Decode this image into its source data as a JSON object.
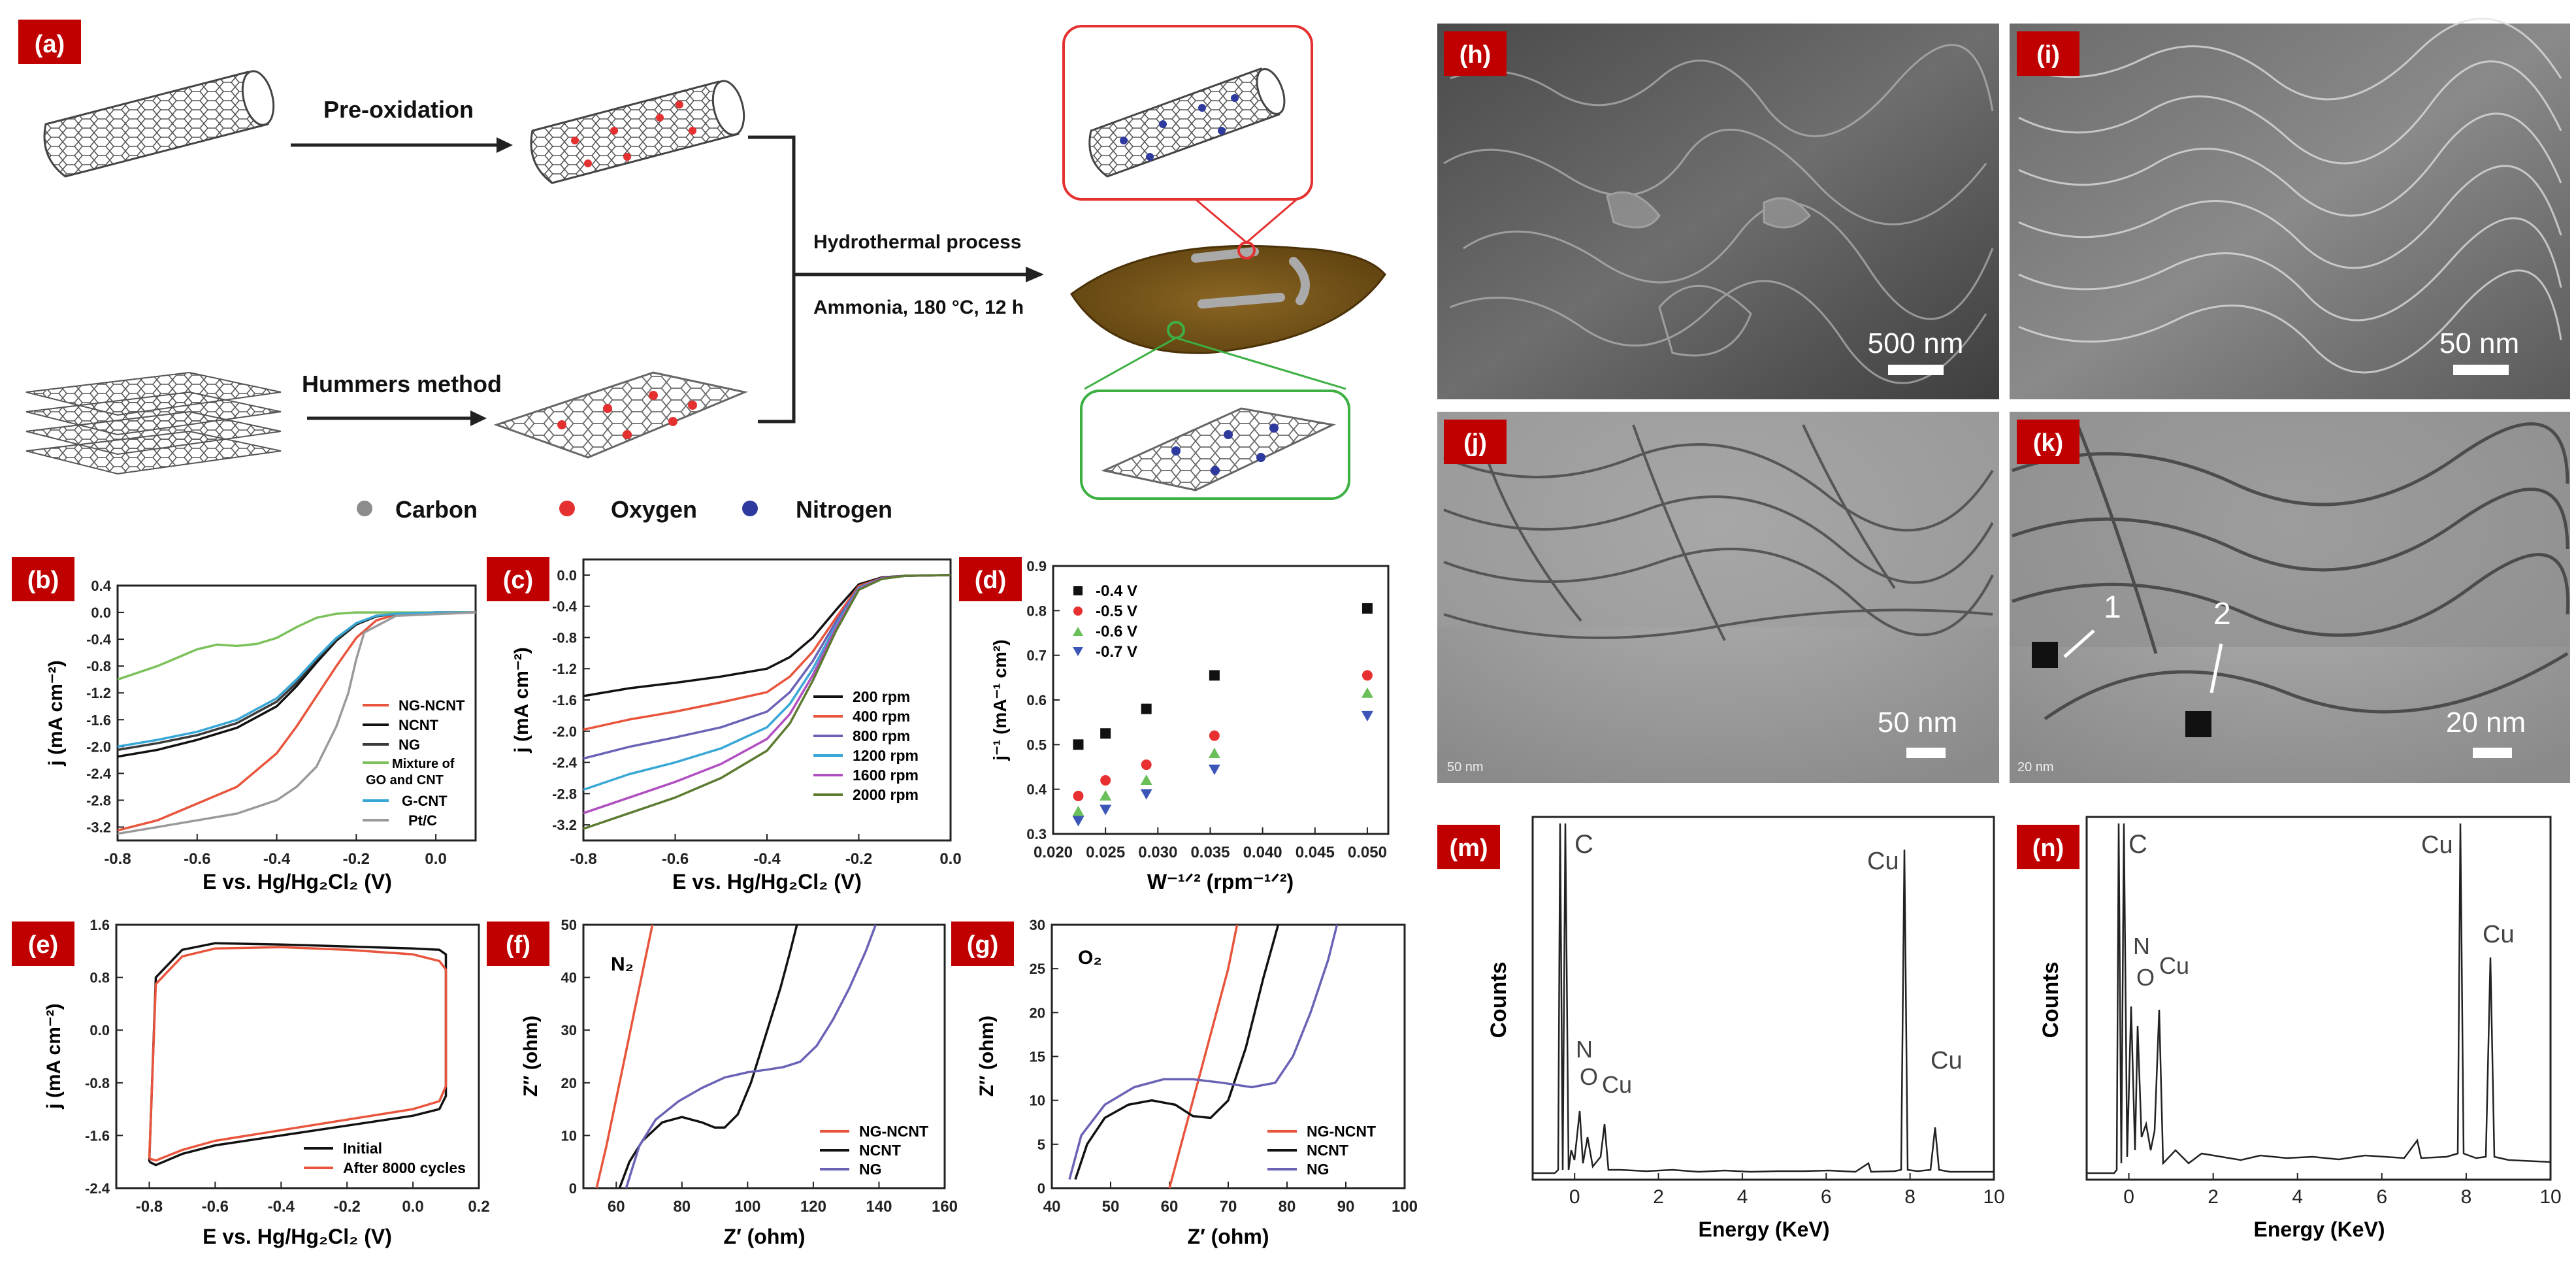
{
  "panels": {
    "a": {
      "tag": "(a)",
      "step_pre_oxidation": "Pre-oxidation",
      "step_hummers": "Hummers method",
      "step_hydrothermal": "Hydrothermal process",
      "step_conditions": "Ammonia, 180 °C, 12 h",
      "legend": [
        {
          "label": "Carbon",
          "color": "#8c8c8c"
        },
        {
          "label": "Oxygen",
          "color": "#e53030"
        },
        {
          "label": "Nitrogen",
          "color": "#2e3a9e"
        }
      ]
    },
    "b": {
      "tag": "(b)",
      "xlabel": "E vs. Hg/Hg₂Cl₂ (V)",
      "ylabel": "j (mA cm⁻²)",
      "xticks": [
        "-0.8",
        "-0.6",
        "-0.4",
        "-0.2",
        "0.0"
      ],
      "yticks": [
        "0.4",
        "0.0",
        "-0.4",
        "-0.8",
        "-1.2",
        "-1.6",
        "-2.0",
        "-2.4",
        "-2.8",
        "-3.2"
      ],
      "legend": [
        "NG-NCNT",
        "NCNT",
        "NG",
        "Mixture of",
        "GO and CNT",
        "G-CNT",
        "Pt/C"
      ]
    },
    "c": {
      "tag": "(c)",
      "xlabel": "E vs. Hg/Hg₂Cl₂ (V)",
      "ylabel": "j (mA cm⁻²)",
      "xticks": [
        "-0.8",
        "-0.6",
        "-0.4",
        "-0.2",
        "0.0"
      ],
      "yticks": [
        "0.0",
        "-0.4",
        "-0.8",
        "-1.2",
        "-1.6",
        "-2.0",
        "-2.4",
        "-2.8",
        "-3.2"
      ],
      "legend": [
        "200 rpm",
        "400 rpm",
        "800 rpm",
        "1200 rpm",
        "1600 rpm",
        "2000 rpm"
      ]
    },
    "d": {
      "tag": "(d)",
      "xlabel": "W⁻¹ᐟ² (rpm⁻¹ᐟ²)",
      "ylabel": "j⁻¹ (mA⁻¹ cm²)",
      "xticks": [
        "0.020",
        "0.025",
        "0.030",
        "0.035",
        "0.040",
        "0.045",
        "0.050"
      ],
      "yticks": [
        "0.9",
        "0.8",
        "0.7",
        "0.6",
        "0.5",
        "0.4",
        "0.3"
      ],
      "legend": [
        "-0.4 V",
        "-0.5 V",
        "-0.6 V",
        "-0.7 V"
      ]
    },
    "e": {
      "tag": "(e)",
      "xlabel": "E vs. Hg/Hg₂Cl₂ (V)",
      "ylabel": "j (mA cm⁻²)",
      "xticks": [
        "-0.8",
        "-0.6",
        "-0.4",
        "-0.2",
        "0.0",
        "0.2"
      ],
      "yticks": [
        "1.6",
        "0.8",
        "0.0",
        "-0.8",
        "-1.6",
        "-2.4"
      ],
      "legend": [
        "Initial",
        "After 8000 cycles"
      ]
    },
    "f": {
      "tag": "(f)",
      "gas": "N₂",
      "xlabel": "Z′ (ohm)",
      "ylabel": "Z″ (ohm)",
      "xticks": [
        "60",
        "80",
        "100",
        "120",
        "140",
        "160"
      ],
      "yticks": [
        "50",
        "40",
        "30",
        "20",
        "10",
        "0"
      ],
      "legend": [
        "NG-NCNT",
        "NCNT",
        "NG"
      ]
    },
    "g": {
      "tag": "(g)",
      "gas": "O₂",
      "xlabel": "Z′ (ohm)",
      "ylabel": "Z″ (ohm)",
      "xticks": [
        "40",
        "50",
        "60",
        "70",
        "80",
        "90",
        "100"
      ],
      "yticks": [
        "30",
        "25",
        "20",
        "15",
        "10",
        "5",
        "0"
      ],
      "legend": [
        "NG-NCNT",
        "NCNT",
        "NG"
      ]
    },
    "h": {
      "tag": "(h)",
      "scale": "500 nm"
    },
    "i": {
      "tag": "(i)",
      "scale": "50 nm"
    },
    "j": {
      "tag": "(j)",
      "scale": "50 nm",
      "micro": "50 nm"
    },
    "k": {
      "tag": "(k)",
      "scale": "20 nm",
      "micro": "20 nm",
      "marker1": "1",
      "marker2": "2"
    },
    "m": {
      "tag": "(m)",
      "xlabel": "Energy (KeV)",
      "ylabel": "Counts",
      "xticks": [
        "0",
        "2",
        "4",
        "6",
        "8",
        "10"
      ],
      "peaks": [
        "C",
        "N",
        "O",
        "Cu",
        "Cu",
        "Cu"
      ]
    },
    "n": {
      "tag": "(n)",
      "xlabel": "Energy (KeV)",
      "ylabel": "Counts",
      "xticks": [
        "0",
        "2",
        "4",
        "6",
        "8",
        "10"
      ],
      "peaks": [
        "C",
        "N",
        "O",
        "Cu",
        "Cu",
        "Cu"
      ]
    }
  },
  "colors": {
    "tag_bg": "#c00000",
    "red": "#e8543c",
    "black": "#111111",
    "blue": "#6a62b5",
    "green": "#7cc15b",
    "cyan": "#39a7d6",
    "gray": "#888888"
  },
  "chart_data": [
    {
      "type": "line",
      "panel": "b",
      "xlim": [
        -0.8,
        0.1
      ],
      "ylim": [
        -3.4,
        0.4
      ],
      "series": [
        {
          "name": "NG-NCNT",
          "color": "#e8543c",
          "x": [
            -0.8,
            -0.7,
            -0.6,
            -0.5,
            -0.4,
            -0.35,
            -0.3,
            -0.25,
            -0.2,
            -0.15,
            -0.1,
            0.0,
            0.1
          ],
          "y": [
            -3.25,
            -3.1,
            -2.85,
            -2.6,
            -2.1,
            -1.7,
            -1.25,
            -0.8,
            -0.38,
            -0.12,
            -0.03,
            0.0,
            0.0
          ]
        },
        {
          "name": "NCNT",
          "color": "#111111",
          "x": [
            -0.8,
            -0.7,
            -0.6,
            -0.5,
            -0.4,
            -0.35,
            -0.3,
            -0.25,
            -0.2,
            -0.15,
            -0.1,
            0.0,
            0.1
          ],
          "y": [
            -2.15,
            -2.05,
            -1.9,
            -1.72,
            -1.4,
            -1.1,
            -0.75,
            -0.42,
            -0.18,
            -0.06,
            -0.02,
            0.0,
            0.0
          ]
        },
        {
          "name": "NG",
          "color": "#3a3a3a",
          "x": [
            -0.8,
            -0.7,
            -0.6,
            -0.5,
            -0.4,
            -0.35,
            -0.3,
            -0.25,
            -0.2,
            -0.15,
            -0.1,
            0.0,
            0.1
          ],
          "y": [
            -2.05,
            -1.95,
            -1.83,
            -1.65,
            -1.33,
            -1.05,
            -0.7,
            -0.4,
            -0.17,
            -0.05,
            -0.02,
            0.0,
            0.0
          ]
        },
        {
          "name": "Mixture of GO and CNT",
          "color": "#7cc15b",
          "x": [
            -0.8,
            -0.7,
            -0.6,
            -0.55,
            -0.5,
            -0.45,
            -0.4,
            -0.35,
            -0.3,
            -0.25,
            -0.2,
            -0.1,
            0.1
          ],
          "y": [
            -1.0,
            -0.8,
            -0.55,
            -0.48,
            -0.5,
            -0.47,
            -0.38,
            -0.22,
            -0.08,
            -0.02,
            0.0,
            0.0,
            0.0
          ]
        },
        {
          "name": "G-CNT",
          "color": "#39a7d6",
          "x": [
            -0.8,
            -0.7,
            -0.6,
            -0.5,
            -0.4,
            -0.35,
            -0.3,
            -0.25,
            -0.2,
            -0.15,
            -0.1,
            0.0,
            0.1
          ],
          "y": [
            -2.0,
            -1.9,
            -1.78,
            -1.6,
            -1.28,
            -1.0,
            -0.68,
            -0.38,
            -0.16,
            -0.05,
            -0.02,
            0.0,
            0.0
          ]
        },
        {
          "name": "Pt/C",
          "color": "#9a9a9a",
          "x": [
            -0.8,
            -0.7,
            -0.6,
            -0.5,
            -0.4,
            -0.35,
            -0.3,
            -0.25,
            -0.22,
            -0.2,
            -0.18,
            -0.1,
            0.1
          ],
          "y": [
            -3.3,
            -3.2,
            -3.1,
            -3.0,
            -2.8,
            -2.6,
            -2.3,
            -1.7,
            -1.2,
            -0.7,
            -0.3,
            -0.05,
            0.0
          ]
        }
      ]
    },
    {
      "type": "line",
      "panel": "c",
      "xlim": [
        -0.8,
        0.0
      ],
      "ylim": [
        -3.4,
        0.2
      ],
      "series": [
        {
          "name": "200 rpm",
          "color": "#111111",
          "x": [
            -0.8,
            -0.7,
            -0.6,
            -0.5,
            -0.4,
            -0.35,
            -0.3,
            -0.25,
            -0.2,
            -0.15,
            -0.1,
            0.0
          ],
          "y": [
            -1.55,
            -1.45,
            -1.38,
            -1.3,
            -1.2,
            -1.05,
            -0.8,
            -0.45,
            -0.12,
            -0.03,
            -0.01,
            0.0
          ]
        },
        {
          "name": "400 rpm",
          "color": "#e8543c",
          "x": [
            -0.8,
            -0.7,
            -0.6,
            -0.5,
            -0.4,
            -0.35,
            -0.3,
            -0.25,
            -0.2,
            -0.15,
            -0.1,
            0.0
          ],
          "y": [
            -1.98,
            -1.85,
            -1.75,
            -1.63,
            -1.5,
            -1.3,
            -0.98,
            -0.55,
            -0.14,
            -0.04,
            -0.01,
            0.0
          ]
        },
        {
          "name": "800 rpm",
          "color": "#6a62b5",
          "x": [
            -0.8,
            -0.7,
            -0.6,
            -0.5,
            -0.4,
            -0.35,
            -0.3,
            -0.25,
            -0.2,
            -0.15,
            -0.1,
            0.0
          ],
          "y": [
            -2.35,
            -2.2,
            -2.08,
            -1.95,
            -1.75,
            -1.5,
            -1.1,
            -0.6,
            -0.16,
            -0.04,
            -0.01,
            0.0
          ]
        },
        {
          "name": "1200 rpm",
          "color": "#39a7d6",
          "x": [
            -0.8,
            -0.7,
            -0.6,
            -0.5,
            -0.4,
            -0.35,
            -0.3,
            -0.25,
            -0.2,
            -0.15,
            -0.1,
            0.0
          ],
          "y": [
            -2.75,
            -2.55,
            -2.4,
            -2.22,
            -1.95,
            -1.65,
            -1.2,
            -0.65,
            -0.17,
            -0.04,
            -0.01,
            0.0
          ]
        },
        {
          "name": "1600 rpm",
          "color": "#b04fc0",
          "x": [
            -0.8,
            -0.7,
            -0.6,
            -0.5,
            -0.4,
            -0.35,
            -0.3,
            -0.25,
            -0.2,
            -0.15,
            -0.1,
            0.0
          ],
          "y": [
            -3.05,
            -2.85,
            -2.65,
            -2.42,
            -2.1,
            -1.78,
            -1.28,
            -0.68,
            -0.18,
            -0.04,
            -0.01,
            0.0
          ]
        },
        {
          "name": "2000 rpm",
          "color": "#5c7a30",
          "x": [
            -0.8,
            -0.7,
            -0.6,
            -0.5,
            -0.4,
            -0.35,
            -0.3,
            -0.25,
            -0.2,
            -0.15,
            -0.1,
            0.0
          ],
          "y": [
            -3.25,
            -3.05,
            -2.85,
            -2.6,
            -2.25,
            -1.9,
            -1.35,
            -0.72,
            -0.19,
            -0.05,
            -0.01,
            0.0
          ]
        }
      ]
    },
    {
      "type": "scatter",
      "panel": "d",
      "xlim": [
        0.02,
        0.052
      ],
      "ylim": [
        0.3,
        0.9
      ],
      "series": [
        {
          "name": "-0.4 V",
          "color": "#111111",
          "marker": "square",
          "x": [
            0.0224,
            0.025,
            0.0289,
            0.0354,
            0.05
          ],
          "y": [
            0.5,
            0.525,
            0.58,
            0.655,
            0.805
          ]
        },
        {
          "name": "-0.5 V",
          "color": "#e83030",
          "marker": "circle",
          "x": [
            0.0224,
            0.025,
            0.0289,
            0.0354,
            0.05
          ],
          "y": [
            0.385,
            0.42,
            0.455,
            0.52,
            0.655
          ]
        },
        {
          "name": "-0.6 V",
          "color": "#6bbf59",
          "marker": "triangle",
          "x": [
            0.0224,
            0.025,
            0.0289,
            0.0354,
            0.05
          ],
          "y": [
            0.35,
            0.385,
            0.42,
            0.48,
            0.615
          ]
        },
        {
          "name": "-0.7 V",
          "color": "#3c56b8",
          "marker": "triangle-down",
          "x": [
            0.0224,
            0.025,
            0.0289,
            0.0354,
            0.05
          ],
          "y": [
            0.33,
            0.355,
            0.39,
            0.445,
            0.565
          ]
        }
      ]
    },
    {
      "type": "line",
      "panel": "e",
      "xlim": [
        -0.9,
        0.2
      ],
      "ylim": [
        -2.4,
        1.6
      ],
      "series": [
        {
          "name": "Initial",
          "color": "#111111",
          "x": [
            -0.8,
            -0.78,
            -0.7,
            -0.6,
            -0.4,
            -0.2,
            0.0,
            0.08,
            0.1,
            0.1,
            0.08,
            0.0,
            -0.2,
            -0.4,
            -0.6,
            -0.7,
            -0.78,
            -0.8
          ],
          "y": [
            -2.0,
            0.8,
            1.22,
            1.32,
            1.3,
            1.27,
            1.24,
            1.22,
            1.15,
            -1.0,
            -1.2,
            -1.3,
            -1.45,
            -1.6,
            -1.75,
            -1.88,
            -2.05,
            -2.0
          ]
        },
        {
          "name": "After 8000 cycles",
          "color": "#e8543c",
          "x": [
            -0.8,
            -0.78,
            -0.7,
            -0.6,
            -0.4,
            -0.2,
            0.0,
            0.08,
            0.1,
            0.1,
            0.08,
            0.0,
            -0.2,
            -0.4,
            -0.6,
            -0.7,
            -0.78,
            -0.8
          ],
          "y": [
            -1.95,
            0.7,
            1.12,
            1.24,
            1.26,
            1.22,
            1.15,
            1.05,
            0.92,
            -0.85,
            -1.08,
            -1.2,
            -1.36,
            -1.52,
            -1.68,
            -1.82,
            -1.98,
            -1.95
          ]
        }
      ]
    },
    {
      "type": "line",
      "panel": "f",
      "xlim": [
        50,
        160
      ],
      "ylim": [
        0,
        50
      ],
      "series": [
        {
          "name": "NG-NCNT",
          "color": "#e8543c",
          "x": [
            54,
            57,
            60,
            63,
            66,
            69,
            71
          ],
          "y": [
            0,
            8,
            17,
            26,
            35,
            44,
            50
          ]
        },
        {
          "name": "NCNT",
          "color": "#111111",
          "x": [
            61,
            64,
            68,
            74,
            80,
            86,
            90,
            93,
            97,
            101,
            105,
            110,
            113,
            115
          ],
          "y": [
            0,
            5,
            9,
            12.5,
            13.5,
            12.5,
            11.5,
            11.5,
            14,
            20,
            28,
            38,
            45,
            50
          ]
        },
        {
          "name": "NG",
          "color": "#6a62b5",
          "x": [
            63,
            67,
            72,
            79,
            86,
            93,
            100,
            106,
            111,
            116,
            121,
            126,
            131,
            136,
            139
          ],
          "y": [
            0,
            8,
            13,
            16.5,
            19,
            21,
            22,
            22.5,
            23,
            24,
            27,
            32,
            38,
            45,
            50
          ]
        }
      ]
    },
    {
      "type": "line",
      "panel": "g",
      "xlim": [
        40,
        100
      ],
      "ylim": [
        0,
        30
      ],
      "series": [
        {
          "name": "NG-NCNT",
          "color": "#e8543c",
          "x": [
            60,
            62,
            64,
            66,
            68,
            70,
            71.5
          ],
          "y": [
            0,
            5,
            10,
            15,
            20,
            25,
            30
          ]
        },
        {
          "name": "NCNT",
          "color": "#111111",
          "x": [
            44,
            46,
            49,
            53,
            57,
            61,
            64,
            67,
            70,
            73,
            76,
            78.5
          ],
          "y": [
            1,
            5,
            8,
            9.5,
            10,
            9.5,
            8.2,
            8,
            10,
            16,
            24,
            30
          ]
        },
        {
          "name": "NG",
          "color": "#6a62b5",
          "x": [
            43,
            45,
            49,
            54,
            59,
            64,
            69,
            74,
            78,
            81,
            84,
            87,
            88.5
          ],
          "y": [
            1,
            6,
            9.5,
            11.5,
            12.4,
            12.4,
            12,
            11.5,
            12,
            15,
            20,
            26,
            30
          ]
        }
      ]
    }
  ]
}
